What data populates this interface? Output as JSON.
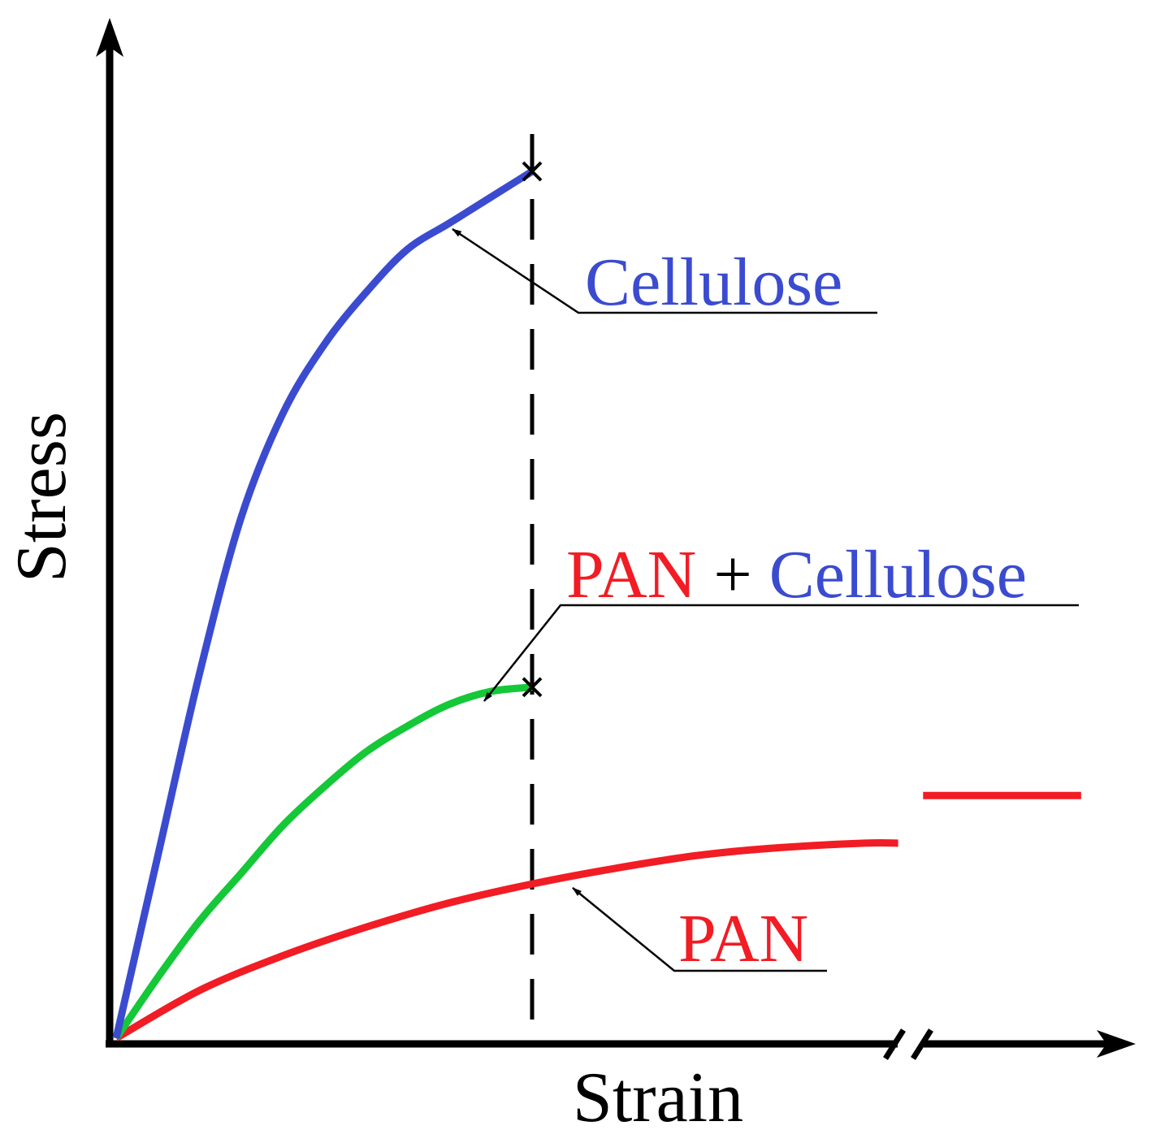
{
  "chart_data": {
    "type": "line",
    "title": "",
    "xlabel": "Strain",
    "ylabel": "Stress",
    "ticks_shown": false,
    "grid": false,
    "x_axis_break": true,
    "series": [
      {
        "name": "Cellulose",
        "color": "#3b4bd0",
        "x": [
          0,
          0.05,
          0.1,
          0.15,
          0.2,
          0.25,
          0.3,
          0.35,
          0.4,
          0.45,
          0.5
        ],
        "y": [
          0,
          0.21,
          0.42,
          0.6,
          0.72,
          0.8,
          0.86,
          0.91,
          0.94,
          0.97,
          1.0
        ],
        "end_marker": "x"
      },
      {
        "name": "PAN + Cellulose",
        "color": "#14c837",
        "x": [
          0,
          0.05,
          0.1,
          0.15,
          0.2,
          0.25,
          0.3,
          0.35,
          0.4,
          0.45,
          0.5
        ],
        "y": [
          0,
          0.07,
          0.135,
          0.19,
          0.245,
          0.29,
          0.33,
          0.36,
          0.385,
          0.4,
          0.405
        ],
        "end_marker": "x"
      },
      {
        "name": "PAN",
        "color": "#f21c24",
        "x": [
          0,
          0.1,
          0.2,
          0.3,
          0.4,
          0.5,
          0.6,
          0.7,
          0.8,
          0.9,
          0.94
        ],
        "y": [
          0,
          0.055,
          0.095,
          0.128,
          0.156,
          0.178,
          0.196,
          0.211,
          0.22,
          0.225,
          0.225
        ],
        "break_segment": {
          "x": [
            0.97,
            1.16
          ],
          "y": [
            0.28,
            0.28
          ]
        }
      }
    ],
    "reference_line": {
      "x": 0.5,
      "style": "dashed"
    },
    "annotations": [
      {
        "target": "Cellulose",
        "parts": [
          {
            "text": "Cellulose",
            "color": "#3b4bd0"
          }
        ]
      },
      {
        "target": "PAN + Cellulose",
        "parts": [
          {
            "text": "PAN",
            "color": "#f21c24"
          },
          {
            "text": " + ",
            "color": "#000000"
          },
          {
            "text": "Cellulose",
            "color": "#3b4bd0"
          }
        ]
      },
      {
        "target": "PAN",
        "parts": [
          {
            "text": "PAN",
            "color": "#f21c24"
          }
        ]
      }
    ]
  }
}
